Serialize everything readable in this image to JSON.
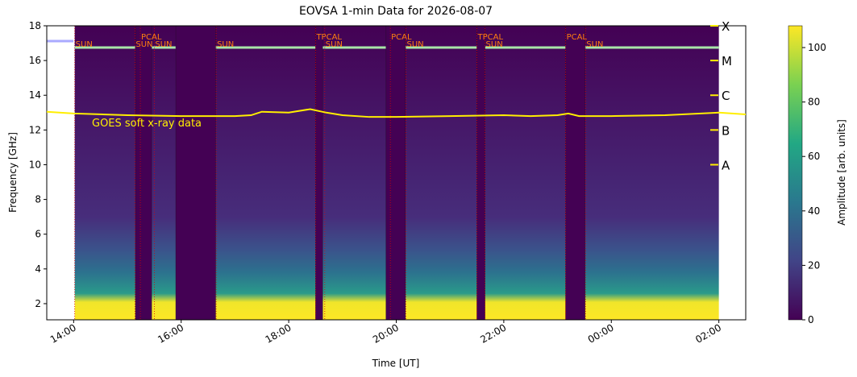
{
  "chart_data": {
    "type": "spectrogram",
    "title": "EOVSA 1-min Data for 2026-08-07",
    "x_label": "Time [UT]",
    "y_label": "Frequency [GHz]",
    "xlim": [
      13.5,
      26.5
    ],
    "xticks": [
      {
        "value": 14,
        "label": "14:00"
      },
      {
        "value": 16,
        "label": "16:00"
      },
      {
        "value": 18,
        "label": "18:00"
      },
      {
        "value": 20,
        "label": "20:00"
      },
      {
        "value": 22,
        "label": "22:00"
      },
      {
        "value": 24,
        "label": "00:00"
      },
      {
        "value": 26,
        "label": "02:00"
      }
    ],
    "ylim": [
      1.07,
      18
    ],
    "yticks": [
      2,
      4,
      6,
      8,
      10,
      12,
      14,
      16,
      18
    ],
    "data_start": 14.02,
    "data_end": 26,
    "gaps": [
      [
        15.15,
        15.45
      ],
      [
        15.9,
        16.64
      ],
      [
        18.5,
        18.63
      ],
      [
        19.81,
        20.17
      ],
      [
        21.5,
        21.65
      ],
      [
        23.15,
        23.51
      ]
    ],
    "annotations": [
      {
        "text": "SUN",
        "x": 14.02,
        "row": 0
      },
      {
        "text": "PCAL",
        "x": 15.24,
        "row": 1
      },
      {
        "text": "SUN",
        "x": 15.14,
        "row": 0
      },
      {
        "text": "SUN",
        "x": 15.5,
        "row": 0
      },
      {
        "text": "SUN",
        "x": 16.65,
        "row": 0
      },
      {
        "text": "TPCAL",
        "x": 18.5,
        "row": 1
      },
      {
        "text": "SUN",
        "x": 18.67,
        "row": 0
      },
      {
        "text": "PCAL",
        "x": 19.89,
        "row": 1
      },
      {
        "text": "SUN",
        "x": 20.18,
        "row": 0
      },
      {
        "text": "TPCAL",
        "x": 21.5,
        "row": 1
      },
      {
        "text": "SUN",
        "x": 21.65,
        "row": 0
      },
      {
        "text": "PCAL",
        "x": 23.15,
        "row": 1
      },
      {
        "text": "SUN",
        "x": 23.52,
        "row": 0
      }
    ],
    "goes": {
      "name": "GOES soft x-ray data",
      "color": "#ffee00",
      "x": [
        13.5,
        14,
        15,
        16,
        17,
        17.3,
        17.5,
        18,
        18.4,
        18.7,
        19,
        19.5,
        20,
        21,
        22,
        22.5,
        23,
        23.2,
        23.4,
        24,
        25,
        26,
        26.5
      ],
      "values": [
        13.05,
        12.95,
        12.85,
        12.8,
        12.8,
        12.85,
        13.05,
        13.0,
        13.2,
        13.0,
        12.85,
        12.75,
        12.75,
        12.8,
        12.85,
        12.8,
        12.85,
        12.95,
        12.8,
        12.8,
        12.85,
        13.0,
        12.9
      ],
      "classes": [
        {
          "value": 18,
          "label": "X"
        },
        {
          "value": 16,
          "label": "M"
        },
        {
          "value": 14,
          "label": "C"
        },
        {
          "value": 12,
          "label": "B"
        },
        {
          "value": 10,
          "label": "A"
        }
      ]
    },
    "colorbar": {
      "label": "Amplitude [arb. units]",
      "lim": [
        0,
        108
      ],
      "ticks": [
        0,
        20,
        40,
        60,
        80,
        100
      ]
    }
  }
}
